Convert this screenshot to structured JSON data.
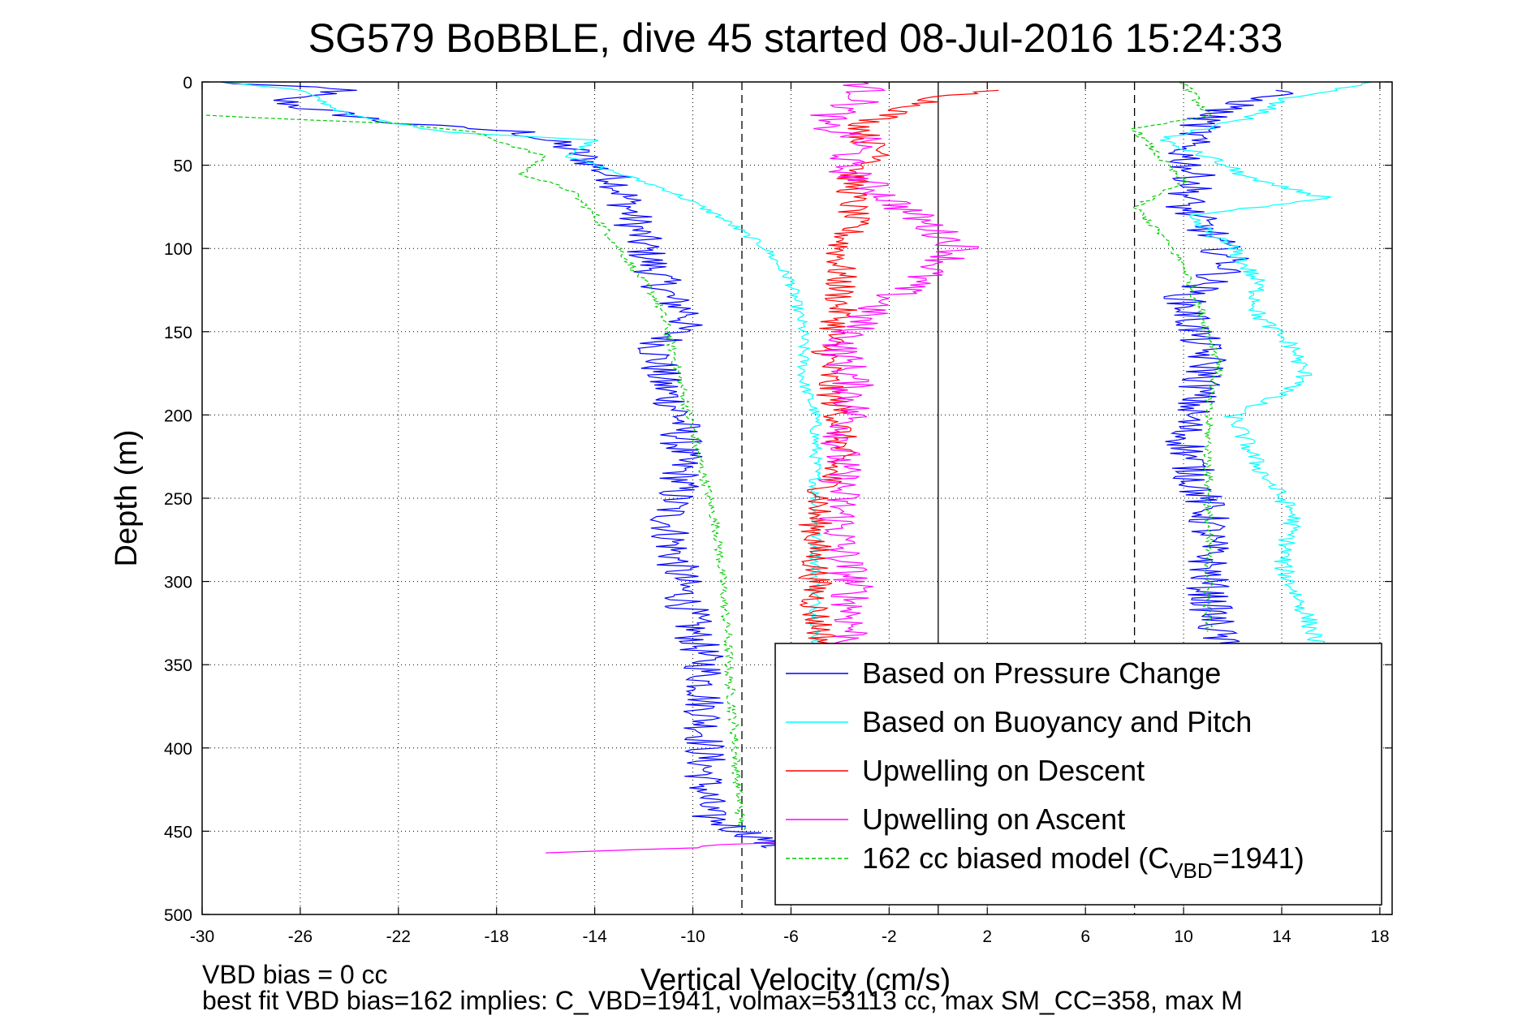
{
  "chart_data": {
    "type": "line",
    "title": "SG579 BoBBLE, dive 45 started 08-Jul-2016 15:24:33",
    "xlabel": "Vertical Velocity (cm/s)",
    "ylabel": "Depth (m)",
    "xlim": [
      -30,
      18.5
    ],
    "ylim": [
      500,
      0
    ],
    "y_reversed": true,
    "grid": true,
    "xticks": [
      -30,
      -26,
      -22,
      -18,
      -14,
      -10,
      -6,
      -2,
      2,
      6,
      10,
      14,
      18
    ],
    "yticks": [
      0,
      50,
      100,
      150,
      200,
      250,
      300,
      350,
      400,
      450,
      500
    ],
    "reference_lines": [
      {
        "x": -8,
        "style": "dashed"
      },
      {
        "x": 0,
        "style": "solid"
      },
      {
        "x": 8,
        "style": "dashed"
      }
    ],
    "legend": {
      "position": "bottom-right",
      "entries": [
        {
          "label": "Based on Pressure Change",
          "color": "#0000ff",
          "style": "solid"
        },
        {
          "label": "Based on Buoyancy and Pitch",
          "color": "#00ffff",
          "style": "solid"
        },
        {
          "label": "Upwelling on Descent",
          "color": "#ff0000",
          "style": "solid"
        },
        {
          "label": "Upwelling on Ascent",
          "color": "#ff00ff",
          "style": "solid"
        },
        {
          "label_prefix": "162 cc biased model (C",
          "label_sub": "VBD",
          "label_suffix": "=1941)",
          "color": "#00cc00",
          "style": "dashed"
        }
      ]
    },
    "series": [
      {
        "name": "Based on Pressure Change",
        "color": "#0000ff",
        "noise": 0.9,
        "points": [
          [
            -29.5,
            0
          ],
          [
            -24,
            5
          ],
          [
            -27,
            10
          ],
          [
            -26,
            15
          ],
          [
            -22,
            25
          ],
          [
            -17,
            30
          ],
          [
            -15,
            40
          ],
          [
            -14,
            50
          ],
          [
            -13,
            60
          ],
          [
            -12.5,
            80
          ],
          [
            -12,
            100
          ],
          [
            -11,
            130
          ],
          [
            -10,
            140
          ],
          [
            -11.5,
            160
          ],
          [
            -11.3,
            180
          ],
          [
            -10.5,
            200
          ],
          [
            -10.5,
            220
          ],
          [
            -10.5,
            240
          ],
          [
            -11,
            260
          ],
          [
            -10.8,
            280
          ],
          [
            -10.5,
            300
          ],
          [
            -10,
            330
          ],
          [
            -9.5,
            350
          ],
          [
            -9.5,
            380
          ],
          [
            -9.5,
            400
          ],
          [
            -9.5,
            440
          ],
          [
            -8,
            450
          ],
          [
            -7,
            455
          ],
          [
            -7,
            460
          ]
        ]
      },
      {
        "name": "Based on Buoyancy and Pitch",
        "color": "#00ffff",
        "noise": 0.25,
        "points": [
          [
            -29,
            0
          ],
          [
            -26,
            5
          ],
          [
            -24,
            20
          ],
          [
            -20,
            30
          ],
          [
            -14,
            35
          ],
          [
            -15,
            45
          ],
          [
            -13,
            55
          ],
          [
            -11,
            65
          ],
          [
            -9,
            80
          ],
          [
            -7,
            100
          ],
          [
            -6,
            120
          ],
          [
            -5.5,
            150
          ],
          [
            -5.5,
            180
          ],
          [
            -5,
            200
          ],
          [
            -5,
            230
          ],
          [
            -5,
            250
          ],
          [
            -5,
            280
          ],
          [
            -5,
            300
          ],
          [
            -5,
            330
          ],
          [
            -5,
            340
          ]
        ]
      },
      {
        "name": "Upwelling on Descent",
        "color": "#ff0000",
        "noise": 0.7,
        "points": [
          [
            2,
            5
          ],
          [
            0,
            10
          ],
          [
            -2,
            20
          ],
          [
            -3,
            25
          ],
          [
            -3,
            35
          ],
          [
            -2,
            45
          ],
          [
            -3.5,
            55
          ],
          [
            -3.5,
            70
          ],
          [
            -3.5,
            85
          ],
          [
            -4,
            100
          ],
          [
            -4,
            120
          ],
          [
            -4,
            140
          ],
          [
            -4.5,
            160
          ],
          [
            -4.5,
            180
          ],
          [
            -4,
            200
          ],
          [
            -4,
            220
          ],
          [
            -4.5,
            240
          ],
          [
            -5,
            260
          ],
          [
            -5,
            280
          ],
          [
            -5,
            300
          ],
          [
            -5,
            320
          ],
          [
            -4.5,
            340
          ]
        ]
      },
      {
        "name": "Upwelling on Ascent",
        "color": "#ff00ff",
        "noise": 0.9,
        "points": [
          [
            -3,
            0
          ],
          [
            -3,
            10
          ],
          [
            -5,
            25
          ],
          [
            -3,
            35
          ],
          [
            -4,
            50
          ],
          [
            -3,
            60
          ],
          [
            -2,
            70
          ],
          [
            -1,
            80
          ],
          [
            0,
            90
          ],
          [
            1,
            100
          ],
          [
            0,
            110
          ],
          [
            -1,
            120
          ],
          [
            -2,
            130
          ],
          [
            -3,
            140
          ],
          [
            -4,
            160
          ],
          [
            -3.5,
            180
          ],
          [
            -3.5,
            200
          ],
          [
            -4,
            220
          ],
          [
            -4,
            240
          ],
          [
            -4,
            260
          ],
          [
            -4,
            280
          ],
          [
            -3.5,
            300
          ],
          [
            -3.5,
            320
          ],
          [
            -3.5,
            350
          ],
          [
            -5,
            455
          ],
          [
            -10,
            460
          ],
          [
            -16,
            463
          ]
        ]
      },
      {
        "name": "162 cc biased model (C_VBD=1941)",
        "color": "#00cc00",
        "dashed": true,
        "noise": 0.2,
        "points": [
          [
            -30,
            20
          ],
          [
            -22,
            25
          ],
          [
            -19,
            30
          ],
          [
            -16,
            45
          ],
          [
            -17,
            55
          ],
          [
            -15,
            65
          ],
          [
            -14,
            80
          ],
          [
            -13,
            100
          ],
          [
            -11.5,
            130
          ],
          [
            -11,
            150
          ],
          [
            -10.5,
            180
          ],
          [
            -10,
            210
          ],
          [
            -9.5,
            240
          ],
          [
            -9,
            270
          ],
          [
            -8.8,
            300
          ],
          [
            -8.6,
            330
          ],
          [
            -8.5,
            360
          ],
          [
            -8.3,
            390
          ],
          [
            -8.2,
            420
          ],
          [
            -8,
            450
          ]
        ]
      }
    ],
    "upper_right_tails": [
      {
        "series": "Based on Pressure Change",
        "color": "#0000ff",
        "noise": 0.9,
        "points": [
          [
            14,
            5
          ],
          [
            11,
            20
          ],
          [
            10,
            40
          ],
          [
            10.5,
            60
          ],
          [
            10,
            75
          ],
          [
            11,
            90
          ],
          [
            12,
            110
          ],
          [
            10,
            130
          ],
          [
            10.5,
            150
          ],
          [
            11,
            170
          ],
          [
            10.5,
            190
          ],
          [
            10,
            210
          ],
          [
            10.5,
            240
          ],
          [
            11,
            260
          ],
          [
            11,
            280
          ],
          [
            11,
            310
          ],
          [
            11.5,
            340
          ]
        ]
      },
      {
        "series": "Based on Buoyancy and Pitch",
        "color": "#00ffff",
        "noise": 0.4,
        "points": [
          [
            18,
            0
          ],
          [
            14,
            10
          ],
          [
            13,
            20
          ],
          [
            9,
            35
          ],
          [
            11,
            45
          ],
          [
            13,
            60
          ],
          [
            16,
            70
          ],
          [
            10,
            80
          ],
          [
            12,
            100
          ],
          [
            13,
            120
          ],
          [
            13,
            140
          ],
          [
            14.5,
            160
          ],
          [
            15,
            180
          ],
          [
            12,
            200
          ],
          [
            13,
            230
          ],
          [
            14.5,
            260
          ],
          [
            14,
            290
          ],
          [
            15,
            320
          ],
          [
            15.5,
            340
          ]
        ]
      },
      {
        "series": "162 cc biased model (C_VBD=1941)",
        "color": "#00cc00",
        "dashed": true,
        "noise": 0.2,
        "points": [
          [
            10,
            0
          ],
          [
            10.5,
            10
          ],
          [
            11,
            20
          ],
          [
            8,
            28
          ],
          [
            9,
            45
          ],
          [
            10,
            60
          ],
          [
            8,
            75
          ],
          [
            9,
            90
          ],
          [
            10,
            110
          ],
          [
            10.5,
            130
          ],
          [
            11,
            150
          ],
          [
            11.5,
            170
          ],
          [
            11,
            190
          ],
          [
            11,
            210
          ],
          [
            11,
            240
          ],
          [
            11,
            270
          ],
          [
            11,
            300
          ],
          [
            11,
            330
          ]
        ]
      }
    ]
  },
  "footnotes": [
    "VBD bias = 0 cc",
    "best fit VBD bias=162 implies: C_VBD=1941, volmax=53113 cc, max SM_CC=358, max M"
  ]
}
